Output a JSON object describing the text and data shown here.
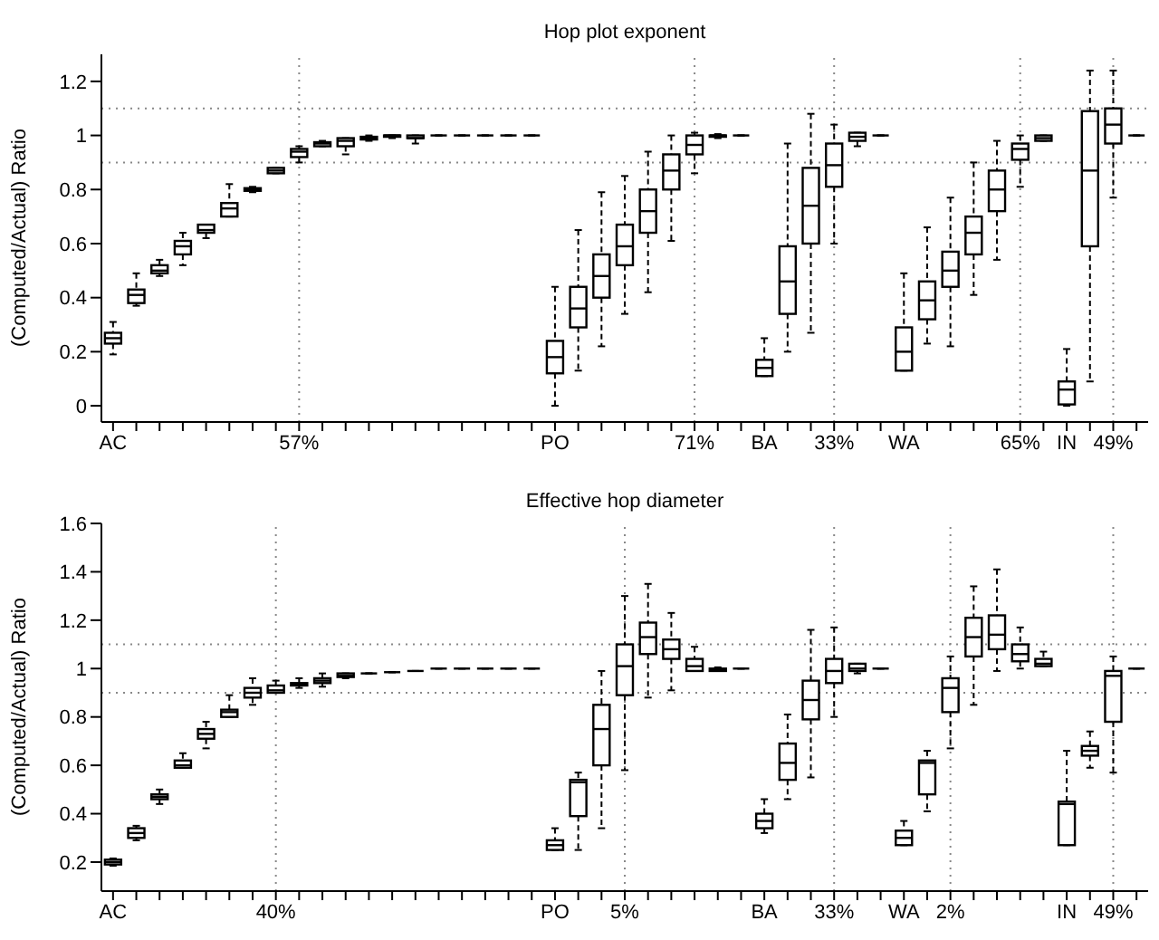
{
  "chart_data": [
    {
      "type": "box",
      "title": "Hop plot exponent",
      "ylabel": "(Computed/Actual) Ratio",
      "categories": [
        "AC",
        null,
        null,
        null,
        null,
        null,
        null,
        null,
        "57%",
        null,
        null,
        null,
        null,
        null,
        null,
        null,
        null,
        null,
        null,
        "PO",
        null,
        null,
        null,
        null,
        null,
        "71%",
        null,
        null,
        "BA",
        null,
        null,
        "33%",
        null,
        null,
        "WA",
        null,
        null,
        null,
        null,
        "65%",
        null,
        "IN",
        null,
        "49%",
        null
      ],
      "boxes": [
        {
          "low": 0.19,
          "q1": 0.23,
          "median": 0.25,
          "q3": 0.27,
          "high": 0.31
        },
        {
          "low": 0.37,
          "q1": 0.38,
          "median": 0.41,
          "q3": 0.43,
          "high": 0.49
        },
        {
          "low": 0.48,
          "q1": 0.49,
          "median": 0.5,
          "q3": 0.52,
          "high": 0.54
        },
        {
          "low": 0.52,
          "q1": 0.56,
          "median": 0.59,
          "q3": 0.61,
          "high": 0.64
        },
        {
          "low": 0.62,
          "q1": 0.64,
          "median": 0.65,
          "q3": 0.67,
          "high": 0.67
        },
        {
          "low": 0.7,
          "q1": 0.7,
          "median": 0.73,
          "q3": 0.75,
          "high": 0.82
        },
        {
          "low": 0.79,
          "q1": 0.795,
          "median": 0.8,
          "q3": 0.805,
          "high": 0.81
        },
        {
          "low": 0.86,
          "q1": 0.86,
          "median": 0.87,
          "q3": 0.88,
          "high": 0.88
        },
        {
          "low": 0.9,
          "q1": 0.92,
          "median": 0.94,
          "q3": 0.95,
          "high": 0.96
        },
        {
          "low": 0.96,
          "q1": 0.96,
          "median": 0.97,
          "q3": 0.975,
          "high": 0.98
        },
        {
          "low": 0.93,
          "q1": 0.96,
          "median": 0.98,
          "q3": 0.99,
          "high": 0.99
        },
        {
          "low": 0.98,
          "q1": 0.985,
          "median": 0.99,
          "q3": 0.995,
          "high": 1.0
        },
        {
          "low": 0.99,
          "q1": 0.995,
          "median": 1.0,
          "q3": 1.0,
          "high": 1.0
        },
        {
          "low": 0.97,
          "q1": 0.99,
          "median": 0.99,
          "q3": 1.0,
          "high": 1.0
        },
        {
          "low": 1,
          "q1": 1,
          "median": 1,
          "q3": 1,
          "high": 1
        },
        {
          "low": 1,
          "q1": 1,
          "median": 1,
          "q3": 1,
          "high": 1
        },
        {
          "low": 1,
          "q1": 1,
          "median": 1,
          "q3": 1,
          "high": 1
        },
        {
          "low": 1,
          "q1": 1,
          "median": 1,
          "q3": 1,
          "high": 1
        },
        {
          "low": 1,
          "q1": 1,
          "median": 1,
          "q3": 1,
          "high": 1
        },
        {
          "low": 0,
          "q1": 0.12,
          "median": 0.18,
          "q3": 0.24,
          "high": 0.44
        },
        {
          "low": 0.13,
          "q1": 0.29,
          "median": 0.36,
          "q3": 0.44,
          "high": 0.65
        },
        {
          "low": 0.22,
          "q1": 0.4,
          "median": 0.48,
          "q3": 0.56,
          "high": 0.79
        },
        {
          "low": 0.34,
          "q1": 0.52,
          "median": 0.59,
          "q3": 0.67,
          "high": 0.85
        },
        {
          "low": 0.42,
          "q1": 0.64,
          "median": 0.72,
          "q3": 0.8,
          "high": 0.94
        },
        {
          "low": 0.61,
          "q1": 0.8,
          "median": 0.87,
          "q3": 0.93,
          "high": 1.0
        },
        {
          "low": 0.86,
          "q1": 0.93,
          "median": 0.965,
          "q3": 1.0,
          "high": 1.01
        },
        {
          "low": 0.99,
          "q1": 0.995,
          "median": 1.0,
          "q3": 1.0,
          "high": 1.005
        },
        {
          "low": 1,
          "q1": 1,
          "median": 1,
          "q3": 1,
          "high": 1
        },
        {
          "low": 0.11,
          "q1": 0.11,
          "median": 0.14,
          "q3": 0.17,
          "high": 0.25
        },
        {
          "low": 0.2,
          "q1": 0.34,
          "median": 0.46,
          "q3": 0.59,
          "high": 0.97
        },
        {
          "low": 0.27,
          "q1": 0.6,
          "median": 0.74,
          "q3": 0.88,
          "high": 1.08
        },
        {
          "low": 0.6,
          "q1": 0.81,
          "median": 0.89,
          "q3": 0.97,
          "high": 1.04
        },
        {
          "low": 0.96,
          "q1": 0.98,
          "median": 0.995,
          "q3": 1.01,
          "high": 1.01
        },
        {
          "low": 1,
          "q1": 1,
          "median": 1,
          "q3": 1,
          "high": 1
        },
        {
          "low": 0.13,
          "q1": 0.13,
          "median": 0.2,
          "q3": 0.29,
          "high": 0.49
        },
        {
          "low": 0.23,
          "q1": 0.32,
          "median": 0.39,
          "q3": 0.46,
          "high": 0.66
        },
        {
          "low": 0.22,
          "q1": 0.44,
          "median": 0.5,
          "q3": 0.57,
          "high": 0.77
        },
        {
          "low": 0.41,
          "q1": 0.56,
          "median": 0.64,
          "q3": 0.7,
          "high": 0.9
        },
        {
          "low": 0.54,
          "q1": 0.72,
          "median": 0.8,
          "q3": 0.87,
          "high": 0.98
        },
        {
          "low": 0.81,
          "q1": 0.91,
          "median": 0.95,
          "q3": 0.97,
          "high": 1.0
        },
        {
          "low": 0.98,
          "q1": 0.98,
          "median": 0.99,
          "q3": 1.0,
          "high": 1.0
        },
        {
          "low": 0,
          "q1": 0.005,
          "median": 0.06,
          "q3": 0.09,
          "high": 0.21
        },
        {
          "low": 0.09,
          "q1": 0.59,
          "median": 0.87,
          "q3": 1.09,
          "high": 1.24
        },
        {
          "low": 0.77,
          "q1": 0.97,
          "median": 1.04,
          "q3": 1.1,
          "high": 1.24
        },
        {
          "low": 1,
          "q1": 1,
          "median": 1,
          "q3": 1,
          "high": 1
        }
      ],
      "ylim": [
        -0.06,
        1.3
      ],
      "yticks": [
        0,
        0.2,
        0.4,
        0.6,
        0.8,
        1,
        1.2
      ],
      "ref_lines": [
        {
          "axis": "y",
          "value": 1.1
        },
        {
          "axis": "y",
          "value": 0.9
        },
        {
          "axis": "x",
          "value": "57%"
        },
        {
          "axis": "x",
          "value": "71%"
        },
        {
          "axis": "x",
          "value": "33%"
        },
        {
          "axis": "x",
          "value": "65%"
        },
        {
          "axis": "x",
          "value": "49%"
        }
      ]
    },
    {
      "type": "box",
      "title": "Effective hop diameter",
      "ylabel": "(Computed/Actual) Ratio",
      "categories": [
        "AC",
        null,
        null,
        null,
        null,
        null,
        null,
        "40%",
        null,
        null,
        null,
        null,
        null,
        null,
        null,
        null,
        null,
        null,
        null,
        "PO",
        null,
        null,
        "5%",
        null,
        null,
        null,
        null,
        null,
        "BA",
        null,
        null,
        "33%",
        null,
        null,
        "WA",
        null,
        "2%",
        null,
        null,
        null,
        null,
        "IN",
        null,
        "49%",
        null
      ],
      "boxes": [
        {
          "low": 0.185,
          "q1": 0.19,
          "median": 0.2,
          "q3": 0.21,
          "high": 0.215
        },
        {
          "low": 0.29,
          "q1": 0.3,
          "median": 0.32,
          "q3": 0.34,
          "high": 0.35
        },
        {
          "low": 0.44,
          "q1": 0.46,
          "median": 0.47,
          "q3": 0.48,
          "high": 0.5
        },
        {
          "low": 0.59,
          "q1": 0.59,
          "median": 0.6,
          "q3": 0.62,
          "high": 0.65
        },
        {
          "low": 0.67,
          "q1": 0.71,
          "median": 0.73,
          "q3": 0.75,
          "high": 0.78
        },
        {
          "low": 0.8,
          "q1": 0.8,
          "median": 0.82,
          "q3": 0.83,
          "high": 0.89
        },
        {
          "low": 0.85,
          "q1": 0.88,
          "median": 0.9,
          "q3": 0.92,
          "high": 0.96
        },
        {
          "low": 0.9,
          "q1": 0.9,
          "median": 0.91,
          "q3": 0.93,
          "high": 0.95
        },
        {
          "low": 0.92,
          "q1": 0.93,
          "median": 0.935,
          "q3": 0.94,
          "high": 0.96
        },
        {
          "low": 0.925,
          "q1": 0.94,
          "median": 0.95,
          "q3": 0.96,
          "high": 0.98
        },
        {
          "low": 0.96,
          "q1": 0.965,
          "median": 0.97,
          "q3": 0.98,
          "high": 0.98
        },
        {
          "low": 0.98,
          "q1": 0.98,
          "median": 0.98,
          "q3": 0.98,
          "high": 0.98
        },
        {
          "low": 0.985,
          "q1": 0.985,
          "median": 0.985,
          "q3": 0.985,
          "high": 0.985
        },
        {
          "low": 0.99,
          "q1": 0.99,
          "median": 0.99,
          "q3": 0.99,
          "high": 0.99
        },
        {
          "low": 1,
          "q1": 1,
          "median": 1,
          "q3": 1,
          "high": 1
        },
        {
          "low": 1,
          "q1": 1,
          "median": 1,
          "q3": 1,
          "high": 1
        },
        {
          "low": 1,
          "q1": 1,
          "median": 1,
          "q3": 1,
          "high": 1
        },
        {
          "low": 1,
          "q1": 1,
          "median": 1,
          "q3": 1,
          "high": 1
        },
        {
          "low": 1,
          "q1": 1,
          "median": 1,
          "q3": 1,
          "high": 1
        },
        {
          "low": 0.25,
          "q1": 0.25,
          "median": 0.27,
          "q3": 0.29,
          "high": 0.34
        },
        {
          "low": 0.25,
          "q1": 0.39,
          "median": 0.53,
          "q3": 0.54,
          "high": 0.57
        },
        {
          "low": 0.34,
          "q1": 0.6,
          "median": 0.75,
          "q3": 0.85,
          "high": 0.99
        },
        {
          "low": 0.58,
          "q1": 0.89,
          "median": 1.01,
          "q3": 1.1,
          "high": 1.3
        },
        {
          "low": 0.88,
          "q1": 1.06,
          "median": 1.13,
          "q3": 1.19,
          "high": 1.35
        },
        {
          "low": 0.91,
          "q1": 1.04,
          "median": 1.08,
          "q3": 1.12,
          "high": 1.23
        },
        {
          "low": 0.99,
          "q1": 0.99,
          "median": 1.01,
          "q3": 1.04,
          "high": 1.09
        },
        {
          "low": 0.99,
          "q1": 0.99,
          "median": 0.995,
          "q3": 1.0,
          "high": 1.005
        },
        {
          "low": 1,
          "q1": 1,
          "median": 1,
          "q3": 1,
          "high": 1
        },
        {
          "low": 0.32,
          "q1": 0.34,
          "median": 0.37,
          "q3": 0.4,
          "high": 0.46
        },
        {
          "low": 0.46,
          "q1": 0.54,
          "median": 0.61,
          "q3": 0.69,
          "high": 0.81
        },
        {
          "low": 0.55,
          "q1": 0.79,
          "median": 0.87,
          "q3": 0.95,
          "high": 1.16
        },
        {
          "low": 0.8,
          "q1": 0.94,
          "median": 0.99,
          "q3": 1.04,
          "high": 1.17
        },
        {
          "low": 0.98,
          "q1": 0.99,
          "median": 1.0,
          "q3": 1.02,
          "high": 1.02
        },
        {
          "low": 1,
          "q1": 1,
          "median": 1,
          "q3": 1,
          "high": 1
        },
        {
          "low": 0.27,
          "q1": 0.27,
          "median": 0.3,
          "q3": 0.33,
          "high": 0.37
        },
        {
          "low": 0.41,
          "q1": 0.48,
          "median": 0.61,
          "q3": 0.62,
          "high": 0.66
        },
        {
          "low": 0.67,
          "q1": 0.82,
          "median": 0.92,
          "q3": 0.96,
          "high": 1.05
        },
        {
          "low": 0.85,
          "q1": 1.05,
          "median": 1.13,
          "q3": 1.21,
          "high": 1.34
        },
        {
          "low": 0.99,
          "q1": 1.08,
          "median": 1.14,
          "q3": 1.22,
          "high": 1.41
        },
        {
          "low": 1.0,
          "q1": 1.03,
          "median": 1.06,
          "q3": 1.1,
          "high": 1.17
        },
        {
          "low": 1.01,
          "q1": 1.01,
          "median": 1.02,
          "q3": 1.04,
          "high": 1.07
        },
        {
          "low": 0.27,
          "q1": 0.27,
          "median": 0.44,
          "q3": 0.45,
          "high": 0.66
        },
        {
          "low": 0.59,
          "q1": 0.64,
          "median": 0.66,
          "q3": 0.68,
          "high": 0.74
        },
        {
          "low": 0.57,
          "q1": 0.78,
          "median": 0.97,
          "q3": 0.99,
          "high": 1.05
        },
        {
          "low": 1,
          "q1": 1,
          "median": 1,
          "q3": 1,
          "high": 1
        }
      ],
      "ylim": [
        0.08,
        1.6
      ],
      "yticks": [
        0.2,
        0.4,
        0.6,
        0.8,
        1,
        1.2,
        1.4,
        1.6
      ],
      "ref_lines": [
        {
          "axis": "y",
          "value": 1.1
        },
        {
          "axis": "y",
          "value": 0.9
        },
        {
          "axis": "x",
          "value": "40%"
        },
        {
          "axis": "x",
          "value": "5%"
        },
        {
          "axis": "x",
          "value": "33%"
        },
        {
          "axis": "x",
          "value": "2%"
        },
        {
          "axis": "x",
          "value": "49%"
        }
      ]
    }
  ]
}
